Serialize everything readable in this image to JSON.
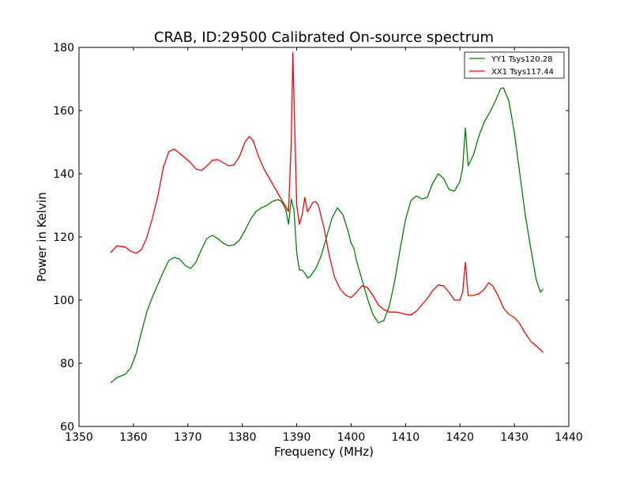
{
  "chart_data": {
    "type": "line",
    "title": "CRAB, ID:29500 Calibrated On-source spectrum",
    "xlabel": "Frequency (MHz)",
    "ylabel": "Power in Kelvin",
    "xlim": [
      1350,
      1440
    ],
    "ylim": [
      60,
      180
    ],
    "xticks": [
      1350,
      1360,
      1370,
      1380,
      1390,
      1400,
      1410,
      1420,
      1430,
      1440
    ],
    "yticks": [
      60,
      80,
      100,
      120,
      140,
      160,
      180
    ],
    "grid": false,
    "legend": {
      "position": "top-right",
      "entries": [
        "YY1 Tsys120.28",
        "XX1 Tsys117.44"
      ]
    },
    "series": [
      {
        "name": "YY1 Tsys120.28",
        "color": "#008000",
        "points": [
          [
            1355.8,
            73.8
          ],
          [
            1357.0,
            75.5
          ],
          [
            1358.5,
            76.5
          ],
          [
            1359.5,
            78.5
          ],
          [
            1360.5,
            83.0
          ],
          [
            1361.5,
            90.0
          ],
          [
            1362.5,
            96.5
          ],
          [
            1363.5,
            101.0
          ],
          [
            1364.5,
            105.0
          ],
          [
            1365.5,
            109.0
          ],
          [
            1366.5,
            112.5
          ],
          [
            1367.5,
            113.5
          ],
          [
            1368.5,
            113.0
          ],
          [
            1369.5,
            111.0
          ],
          [
            1370.5,
            110.0
          ],
          [
            1371.5,
            112.0
          ],
          [
            1372.5,
            116.0
          ],
          [
            1373.5,
            119.5
          ],
          [
            1374.5,
            120.5
          ],
          [
            1375.5,
            119.5
          ],
          [
            1376.5,
            118.0
          ],
          [
            1377.5,
            117.2
          ],
          [
            1378.5,
            117.5
          ],
          [
            1379.5,
            119.0
          ],
          [
            1380.5,
            122.0
          ],
          [
            1381.5,
            125.5
          ],
          [
            1382.5,
            128.0
          ],
          [
            1383.5,
            129.2
          ],
          [
            1384.5,
            130.0
          ],
          [
            1385.5,
            131.2
          ],
          [
            1386.5,
            131.8
          ],
          [
            1387.0,
            131.5
          ],
          [
            1387.5,
            130.5
          ],
          [
            1388.0,
            128.5
          ],
          [
            1388.5,
            124.0
          ],
          [
            1389.0,
            132.0
          ],
          [
            1389.5,
            128.5
          ],
          [
            1390.0,
            115.0
          ],
          [
            1390.5,
            109.5
          ],
          [
            1391.0,
            109.5
          ],
          [
            1391.5,
            108.5
          ],
          [
            1392.0,
            107.0
          ],
          [
            1392.5,
            107.5
          ],
          [
            1393.5,
            110.0
          ],
          [
            1394.5,
            114.0
          ],
          [
            1395.5,
            120.0
          ],
          [
            1396.5,
            126.0
          ],
          [
            1397.5,
            129.2
          ],
          [
            1398.5,
            127.0
          ],
          [
            1399.5,
            121.5
          ],
          [
            1400.0,
            118.0
          ],
          [
            1400.5,
            116.5
          ],
          [
            1401.0,
            112.5
          ],
          [
            1402.0,
            106.5
          ],
          [
            1403.0,
            100.5
          ],
          [
            1404.0,
            95.5
          ],
          [
            1405.0,
            92.8
          ],
          [
            1406.0,
            93.5
          ],
          [
            1407.0,
            98.0
          ],
          [
            1408.0,
            106.0
          ],
          [
            1409.0,
            116.0
          ],
          [
            1410.0,
            125.5
          ],
          [
            1411.0,
            131.5
          ],
          [
            1412.0,
            133.0
          ],
          [
            1413.0,
            132.0
          ],
          [
            1414.0,
            132.5
          ],
          [
            1415.0,
            137.0
          ],
          [
            1416.0,
            140.0
          ],
          [
            1417.0,
            138.5
          ],
          [
            1418.0,
            135.0
          ],
          [
            1419.0,
            134.5
          ],
          [
            1420.0,
            137.5
          ],
          [
            1420.5,
            142.0
          ],
          [
            1421.0,
            154.5
          ],
          [
            1421.5,
            142.5
          ],
          [
            1422.5,
            146.0
          ],
          [
            1423.5,
            152.0
          ],
          [
            1424.5,
            156.5
          ],
          [
            1425.5,
            159.5
          ],
          [
            1426.5,
            163.0
          ],
          [
            1427.5,
            167.0
          ],
          [
            1428.0,
            167.2
          ],
          [
            1429.0,
            163.0
          ],
          [
            1430.0,
            153.0
          ],
          [
            1431.0,
            140.0
          ],
          [
            1432.0,
            127.0
          ],
          [
            1433.0,
            116.5
          ],
          [
            1434.0,
            106.5
          ],
          [
            1434.8,
            102.5
          ],
          [
            1435.3,
            103.5
          ]
        ]
      },
      {
        "name": "XX1 Tsys117.44",
        "color": "#ff0000",
        "points": [
          [
            1355.8,
            115.0
          ],
          [
            1357.0,
            117.2
          ],
          [
            1358.5,
            116.8
          ],
          [
            1359.5,
            115.5
          ],
          [
            1360.5,
            114.8
          ],
          [
            1361.5,
            116.0
          ],
          [
            1362.5,
            120.0
          ],
          [
            1363.5,
            126.0
          ],
          [
            1364.5,
            133.0
          ],
          [
            1365.5,
            142.0
          ],
          [
            1366.5,
            147.0
          ],
          [
            1367.5,
            147.8
          ],
          [
            1368.5,
            146.5
          ],
          [
            1369.5,
            145.0
          ],
          [
            1370.5,
            143.5
          ],
          [
            1371.5,
            141.5
          ],
          [
            1372.5,
            141.0
          ],
          [
            1373.5,
            142.5
          ],
          [
            1374.5,
            144.2
          ],
          [
            1375.5,
            144.5
          ],
          [
            1376.5,
            143.5
          ],
          [
            1377.5,
            142.5
          ],
          [
            1378.5,
            142.8
          ],
          [
            1379.5,
            145.5
          ],
          [
            1380.5,
            150.0
          ],
          [
            1381.3,
            151.8
          ],
          [
            1382.0,
            150.5
          ],
          [
            1383.0,
            145.5
          ],
          [
            1384.0,
            141.5
          ],
          [
            1385.0,
            138.5
          ],
          [
            1386.0,
            135.5
          ],
          [
            1387.0,
            132.5
          ],
          [
            1388.0,
            129.5
          ],
          [
            1388.5,
            128.0
          ],
          [
            1389.0,
            150.0
          ],
          [
            1389.3,
            178.3
          ],
          [
            1389.7,
            150.0
          ],
          [
            1390.0,
            130.0
          ],
          [
            1390.5,
            124.0
          ],
          [
            1391.0,
            127.0
          ],
          [
            1391.5,
            132.5
          ],
          [
            1392.0,
            128.0
          ],
          [
            1392.5,
            129.5
          ],
          [
            1393.0,
            131.0
          ],
          [
            1393.5,
            131.2
          ],
          [
            1394.0,
            130.0
          ],
          [
            1395.0,
            123.0
          ],
          [
            1396.0,
            114.0
          ],
          [
            1397.0,
            107.0
          ],
          [
            1398.0,
            103.5
          ],
          [
            1399.0,
            101.5
          ],
          [
            1400.0,
            100.8
          ],
          [
            1401.0,
            102.5
          ],
          [
            1402.0,
            104.5
          ],
          [
            1403.0,
            104.0
          ],
          [
            1404.0,
            101.5
          ],
          [
            1405.0,
            98.5
          ],
          [
            1406.0,
            97.0
          ],
          [
            1407.0,
            96.2
          ],
          [
            1408.0,
            96.2
          ],
          [
            1409.0,
            96.0
          ],
          [
            1410.0,
            95.5
          ],
          [
            1411.0,
            95.3
          ],
          [
            1412.0,
            96.5
          ],
          [
            1413.0,
            98.5
          ],
          [
            1414.0,
            100.5
          ],
          [
            1415.0,
            103.0
          ],
          [
            1416.0,
            104.8
          ],
          [
            1417.0,
            104.5
          ],
          [
            1418.0,
            102.5
          ],
          [
            1419.0,
            100.0
          ],
          [
            1420.0,
            100.0
          ],
          [
            1420.5,
            102.5
          ],
          [
            1421.0,
            112.0
          ],
          [
            1421.5,
            101.5
          ],
          [
            1422.5,
            101.5
          ],
          [
            1423.5,
            102.0
          ],
          [
            1424.5,
            103.5
          ],
          [
            1425.3,
            105.5
          ],
          [
            1426.0,
            104.5
          ],
          [
            1427.0,
            101.5
          ],
          [
            1428.0,
            97.5
          ],
          [
            1429.0,
            95.5
          ],
          [
            1430.0,
            94.5
          ],
          [
            1431.0,
            92.5
          ],
          [
            1432.0,
            89.5
          ],
          [
            1433.0,
            87.0
          ],
          [
            1434.0,
            85.5
          ],
          [
            1435.3,
            83.5
          ]
        ]
      }
    ]
  }
}
